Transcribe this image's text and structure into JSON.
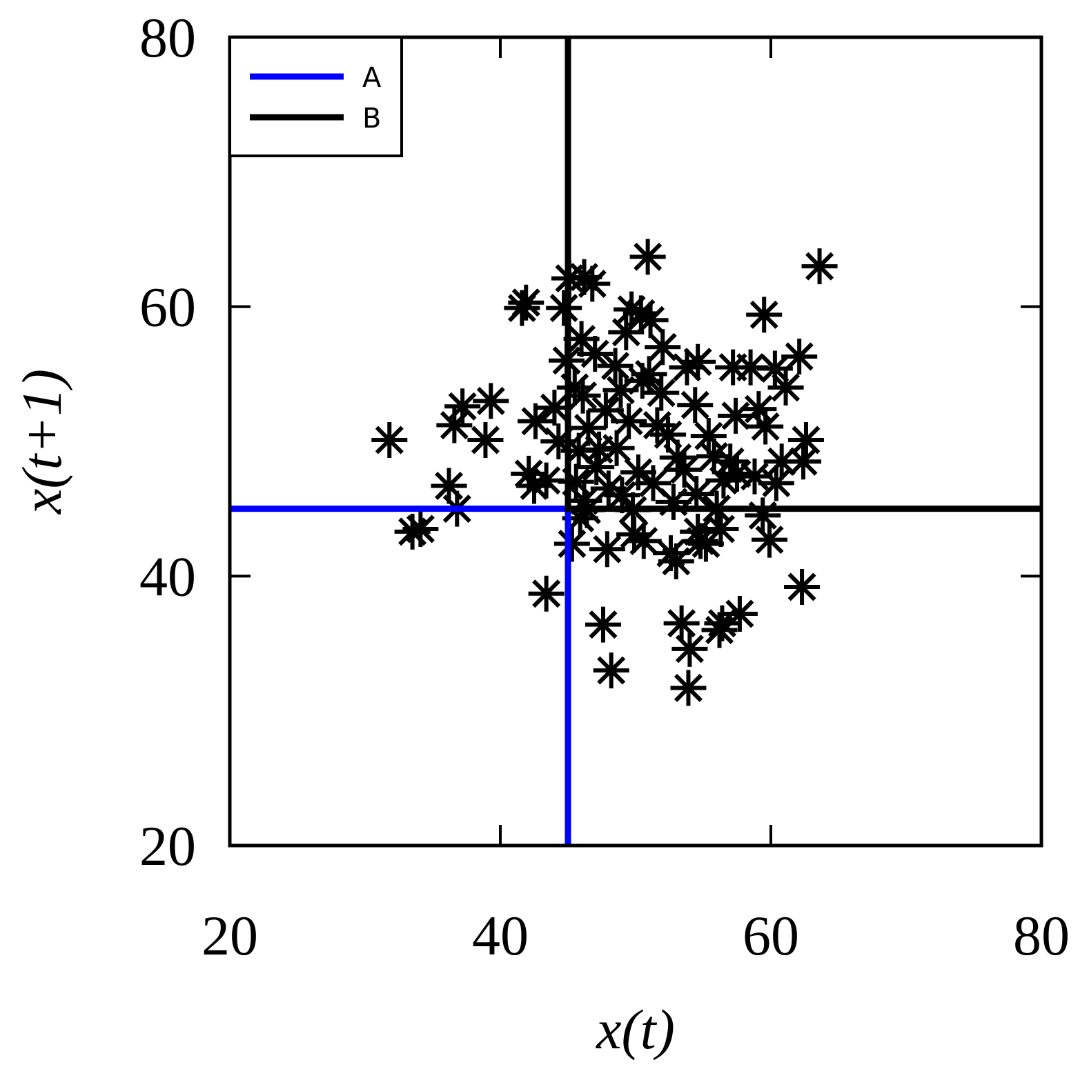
{
  "chart_data": {
    "type": "scatter",
    "title": "",
    "xlabel": "x(t)",
    "ylabel": "x(t+1)",
    "xlim": [
      20,
      80
    ],
    "ylim": [
      20,
      80
    ],
    "xticks": [
      20,
      40,
      60,
      80
    ],
    "yticks": [
      20,
      40,
      60,
      80
    ],
    "grid": false,
    "legend_position": "top-left",
    "marker": "asterisk",
    "marker_color": "#000000",
    "series": [
      {
        "name": "A",
        "color": "#0000ff",
        "points": [
          [
            20,
            45
          ],
          [
            45,
            45
          ],
          [
            45,
            20
          ]
        ]
      },
      {
        "name": "B",
        "color": "#000000",
        "points": [
          [
            45,
            80
          ],
          [
            45,
            45
          ],
          [
            80,
            45
          ]
        ]
      }
    ],
    "points": [
      [
        31.8,
        50.1
      ],
      [
        33.5,
        43.3
      ],
      [
        34.1,
        43.5
      ],
      [
        36.2,
        46.7
      ],
      [
        36.6,
        51.2
      ],
      [
        37.2,
        52.6
      ],
      [
        36.8,
        45.0
      ],
      [
        38.9,
        50.1
      ],
      [
        39.3,
        53.0
      ],
      [
        41.6,
        59.9
      ],
      [
        41.9,
        60.3
      ],
      [
        42.6,
        51.5
      ],
      [
        42.1,
        47.6
      ],
      [
        43.4,
        47.1
      ],
      [
        42.5,
        46.7
      ],
      [
        44.0,
        52.5
      ],
      [
        44.7,
        59.9
      ],
      [
        45.1,
        62.1
      ],
      [
        46.2,
        62.2
      ],
      [
        46.8,
        61.7
      ],
      [
        44.9,
        56.0
      ],
      [
        46.0,
        57.6
      ],
      [
        45.5,
        54.0
      ],
      [
        46.1,
        53.4
      ],
      [
        45.8,
        49.3
      ],
      [
        45.6,
        47.0
      ],
      [
        46.2,
        45.6
      ],
      [
        45.9,
        44.3
      ],
      [
        45.3,
        42.4
      ],
      [
        47.9,
        42.0
      ],
      [
        46.4,
        44.9
      ],
      [
        47.3,
        49.4
      ],
      [
        47.8,
        52.3
      ],
      [
        48.5,
        55.6
      ],
      [
        49.3,
        58.1
      ],
      [
        49.7,
        59.8
      ],
      [
        50.4,
        59.5
      ],
      [
        51.1,
        59.0
      ],
      [
        50.9,
        63.7
      ],
      [
        48.6,
        49.5
      ],
      [
        49.5,
        51.5
      ],
      [
        50.2,
        47.7
      ],
      [
        49.8,
        44.9
      ],
      [
        49.9,
        43.1
      ],
      [
        50.6,
        42.6
      ],
      [
        51.3,
        46.9
      ],
      [
        51.9,
        53.6
      ],
      [
        52.4,
        50.5
      ],
      [
        53.1,
        48.8
      ],
      [
        52.6,
        41.7
      ],
      [
        53.0,
        41.1
      ],
      [
        53.8,
        55.5
      ],
      [
        54.6,
        55.9
      ],
      [
        54.4,
        52.7
      ],
      [
        55.4,
        50.4
      ],
      [
        54.5,
        46.1
      ],
      [
        54.8,
        42.6
      ],
      [
        54.6,
        43.3
      ],
      [
        55.2,
        42.4
      ],
      [
        56.0,
        45.0
      ],
      [
        56.3,
        43.5
      ],
      [
        56.5,
        47.1
      ],
      [
        57.0,
        48.5
      ],
      [
        57.4,
        51.9
      ],
      [
        57.2,
        55.5
      ],
      [
        58.5,
        55.5
      ],
      [
        57.5,
        47.6
      ],
      [
        58.8,
        47.4
      ],
      [
        59.5,
        59.4
      ],
      [
        59.1,
        52.4
      ],
      [
        59.6,
        51.1
      ],
      [
        59.4,
        44.5
      ],
      [
        59.9,
        42.7
      ],
      [
        60.3,
        55.4
      ],
      [
        60.4,
        46.9
      ],
      [
        60.8,
        48.5
      ],
      [
        61.1,
        54.0
      ],
      [
        62.1,
        56.3
      ],
      [
        62.4,
        48.5
      ],
      [
        62.6,
        50.1
      ],
      [
        62.3,
        39.2
      ],
      [
        63.6,
        63.0
      ],
      [
        43.4,
        38.7
      ],
      [
        47.6,
        36.4
      ],
      [
        48.2,
        33.0
      ],
      [
        53.4,
        36.5
      ],
      [
        54.0,
        34.6
      ],
      [
        53.9,
        31.7
      ],
      [
        56.2,
        36.0
      ],
      [
        56.4,
        36.5
      ],
      [
        57.7,
        37.2
      ],
      [
        51.0,
        55.0
      ],
      [
        52.0,
        57.0
      ],
      [
        47.0,
        56.5
      ],
      [
        46.5,
        51.0
      ],
      [
        48.0,
        46.5
      ],
      [
        50.5,
        54.5
      ],
      [
        52.8,
        45.5
      ],
      [
        44.3,
        50.0
      ],
      [
        48.9,
        53.8
      ],
      [
        51.6,
        51.2
      ],
      [
        53.6,
        47.9
      ],
      [
        47.1,
        48.1
      ],
      [
        55.8,
        48.9
      ],
      [
        49.0,
        46.0
      ]
    ]
  }
}
